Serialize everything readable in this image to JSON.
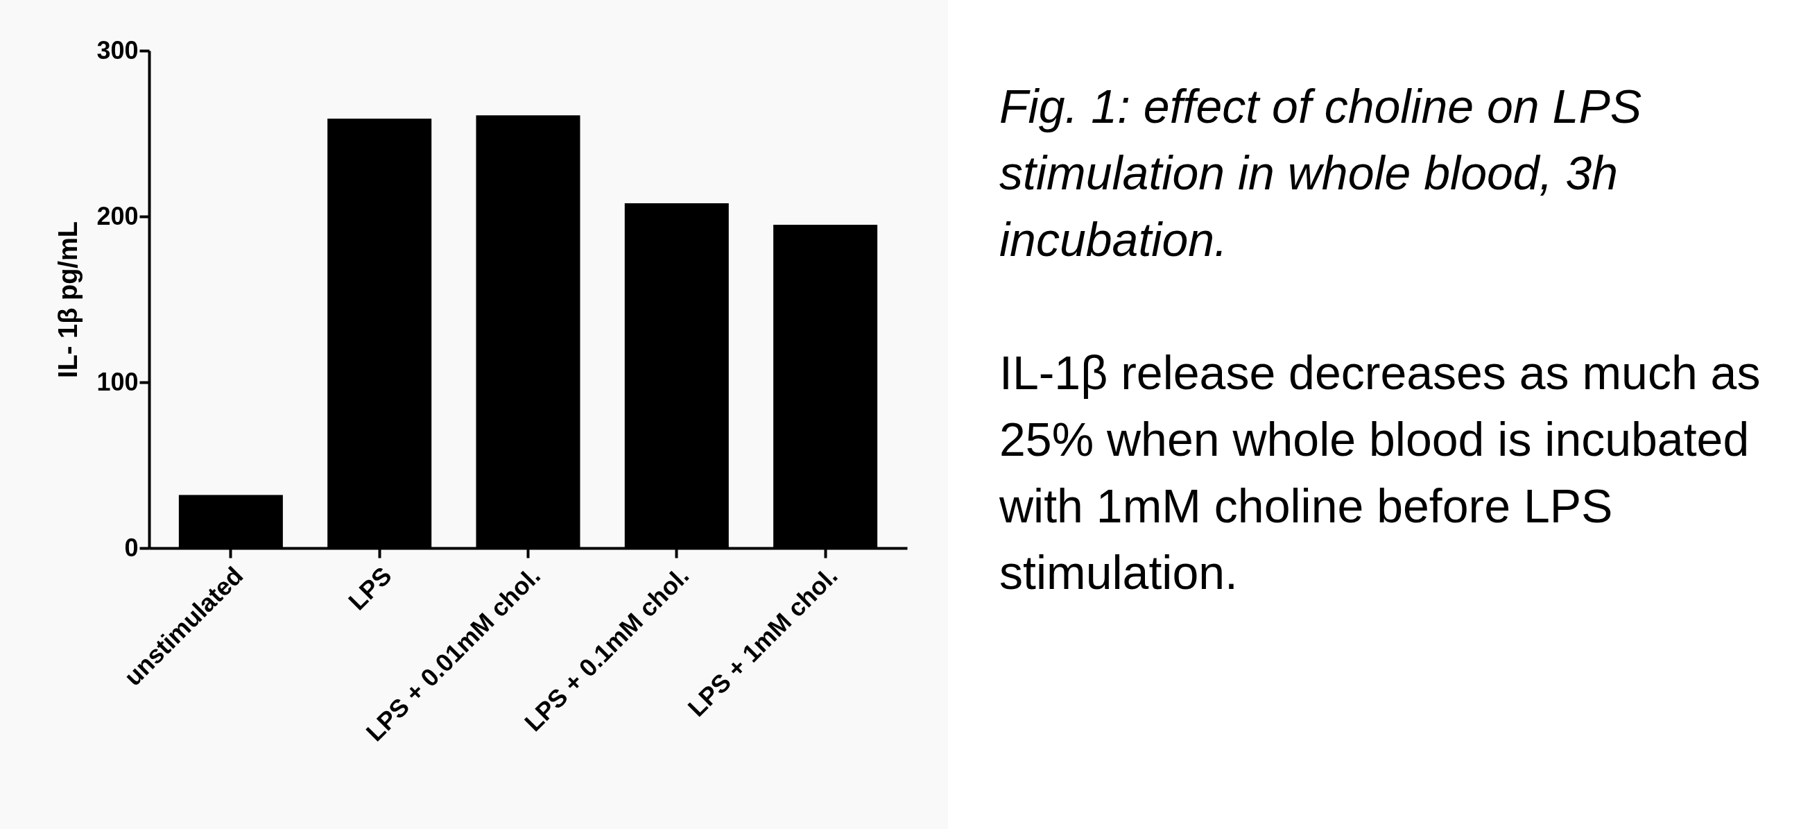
{
  "chart_data": {
    "type": "bar",
    "title": "Fig. 1: effect of choline on LPS stimulation in whole blood, 3h incubation.",
    "categories": [
      "unstimulated",
      "LPS",
      "LPS + 0.01mM chol.",
      "LPS + 0.1mM chol.",
      "LPS + 1mM chol."
    ],
    "values": [
      32,
      259,
      261,
      208,
      195
    ],
    "color": "#000000",
    "ylabel": "IL- 1β pg/mL",
    "ylim": [
      0,
      300
    ],
    "yticks": [
      0,
      100,
      200,
      300
    ],
    "grid": false,
    "annotations": [
      "IL-1β release decreases as much as 25% when whole blood is incubated with 1mM choline before LPS stimulation."
    ]
  }
}
